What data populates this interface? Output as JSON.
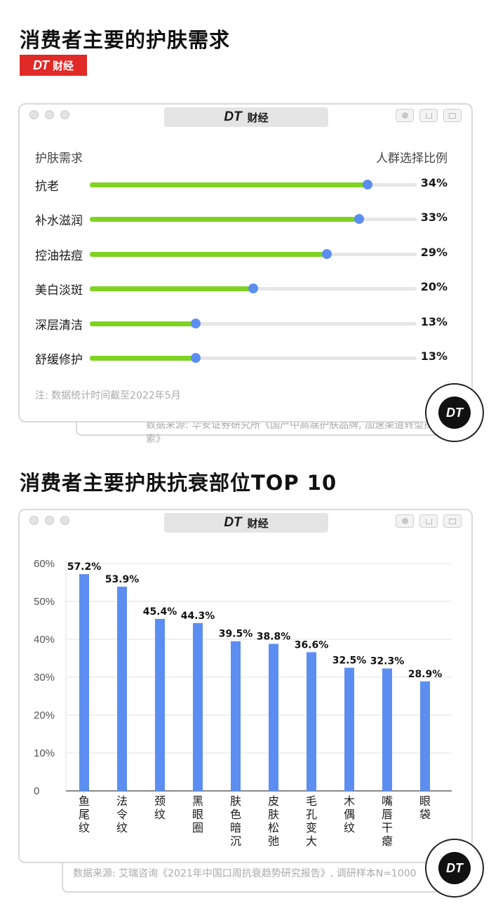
{
  "brand": {
    "logo_text": "DT",
    "badge_cn": "财经"
  },
  "section1": {
    "title": "消费者主要的护肤需求",
    "window_title_dt": "DT",
    "window_title_cn": "财经",
    "header_left": "护肤需求",
    "header_right": "人群选择比例",
    "note": "注: 数据统计时间截至2022年5月",
    "source": "数据来源: 华安证券研究所《国产中高端护肤品牌, 加速渠道转型探索》",
    "colors": {
      "bar": "#7ed321",
      "knob": "#5b8ef0",
      "track": "#e6e6e6"
    }
  },
  "section2": {
    "title": "消费者主要护肤抗衰部位TOP 10",
    "window_title_dt": "DT",
    "window_title_cn": "财经",
    "source": "数据来源: 艾瑞咨询《2021年中国口周抗衰趋势研究报告》, 调研样本N=1000",
    "colors": {
      "bar": "#5b8ef0",
      "grid": "#e0e0e0"
    }
  },
  "chart_data": [
    {
      "type": "bar",
      "orientation": "horizontal",
      "title": "消费者主要的护肤需求",
      "categories": [
        "抗老",
        "补水滋润",
        "控油祛痘",
        "美白淡斑",
        "深层清洁",
        "舒缓修护"
      ],
      "values": [
        34,
        33,
        29,
        20,
        13,
        13
      ],
      "value_labels": [
        "34%",
        "33%",
        "29%",
        "20%",
        "13%",
        "13%"
      ],
      "xlim": [
        0,
        40
      ],
      "xlabel": "人群选择比例",
      "ylabel": "护肤需求"
    },
    {
      "type": "bar",
      "orientation": "vertical",
      "title": "消费者主要护肤抗衰部位TOP 10",
      "categories": [
        "鱼尾纹",
        "法令纹",
        "颈纹",
        "黑眼圈",
        "肤色暗沉",
        "皮肤松弛",
        "毛孔变大",
        "木偶纹",
        "嘴唇干瘪",
        "眼袋"
      ],
      "values": [
        57.2,
        53.9,
        45.4,
        44.3,
        39.5,
        38.8,
        36.6,
        32.5,
        32.3,
        28.9
      ],
      "value_labels": [
        "57.2%",
        "53.9%",
        "45.4%",
        "44.3%",
        "39.5%",
        "38.8%",
        "36.6%",
        "32.5%",
        "32.3%",
        "28.9%"
      ],
      "y_ticks": [
        "60%",
        "50%",
        "40%",
        "30%",
        "20%",
        "10%",
        "0"
      ],
      "ylim": [
        0,
        60
      ],
      "grid": true
    }
  ]
}
